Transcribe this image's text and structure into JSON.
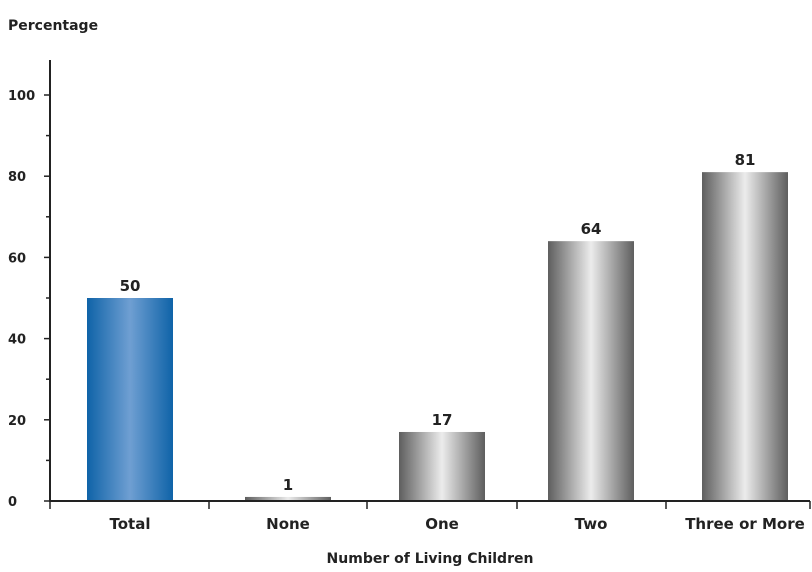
{
  "chart_data": {
    "type": "bar",
    "ylabel": "Percentage",
    "xlabel": "Number of Living Children",
    "categories": [
      "Total",
      "None",
      "One",
      "Two",
      "Three or More"
    ],
    "values": [
      50,
      1,
      17,
      64,
      81
    ],
    "value_labels": [
      "50",
      "1",
      "17",
      "64",
      "81"
    ],
    "ylim": [
      0,
      100
    ],
    "y_ticks": [
      0,
      20,
      40,
      60,
      80,
      100
    ],
    "y_tick_labels": [
      "0",
      "20",
      "40",
      "60",
      "80",
      "100"
    ],
    "grid": false,
    "legend": "none",
    "colors": {
      "highlight": "#1a72b8",
      "default": "#8a8a8a"
    },
    "highlight_index": 0
  }
}
